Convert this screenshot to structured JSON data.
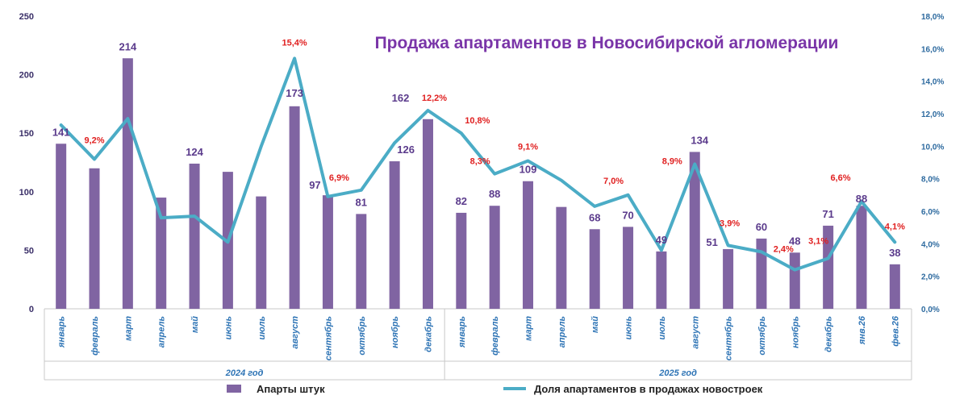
{
  "chart_data": {
    "type": "bar+line",
    "title": "Продажа апартаментов в Новосибирской агломерации",
    "categories": [
      "январь",
      "февраль",
      "март",
      "апрель",
      "май",
      "июнь",
      "июль",
      "август",
      "сентябрь",
      "октябрь",
      "ноябрь",
      "декабрь",
      "январь",
      "февраль",
      "март",
      "апрель",
      "май",
      "июнь",
      "июль",
      "август",
      "сентябрь",
      "октябрь",
      "ноябрь",
      "декабрь",
      "янв.26",
      "фев.26"
    ],
    "groups": [
      {
        "label": "2024 год",
        "from": 0,
        "to": 11
      },
      {
        "label": "2025 год",
        "from": 12,
        "to": 25
      }
    ],
    "series": [
      {
        "name": "Апарты штук",
        "type": "bar",
        "axis": "left",
        "color": "#8064a2",
        "values": [
          141,
          120,
          214,
          95,
          124,
          117,
          96,
          173,
          97,
          81,
          126,
          162,
          82,
          88,
          109,
          87,
          68,
          70,
          49,
          134,
          51,
          60,
          48,
          71,
          88,
          38
        ],
        "labels": [
          "141",
          "",
          "214",
          "",
          "124",
          "",
          "",
          "173",
          "97",
          "81",
          "126",
          "162",
          "82",
          "88",
          "109",
          "",
          "68",
          "70",
          "49",
          "134",
          "51",
          "60",
          "48",
          "71",
          "88",
          "38"
        ]
      },
      {
        "name": "Доля апартаментов в продажах новостроек",
        "type": "line",
        "axis": "right",
        "color": "#4bacc6",
        "values": [
          11.3,
          9.2,
          11.7,
          5.6,
          5.7,
          4.1,
          10.0,
          15.4,
          6.9,
          7.3,
          10.2,
          12.2,
          10.8,
          8.3,
          9.1,
          7.9,
          6.3,
          7.0,
          3.6,
          8.9,
          3.9,
          3.5,
          2.4,
          3.1,
          6.6,
          4.1
        ],
        "labels": [
          "",
          "9,2%",
          "",
          "",
          "",
          "",
          "",
          "15,4%",
          "6,9%",
          "",
          "",
          "12,2%",
          "10,8%",
          "8,3%",
          "9,1%",
          "",
          "",
          "7,0%",
          "",
          "8,9%",
          "3,9%",
          "",
          "2,4%",
          "3,1%",
          "6,6%",
          "4,1%"
        ]
      }
    ],
    "y_left": {
      "min": 0,
      "max": 250,
      "ticks": [
        "0",
        "50",
        "100",
        "150",
        "200",
        "250"
      ]
    },
    "y_right": {
      "min": 0,
      "max": 18,
      "ticks": [
        "0,0%",
        "2,0%",
        "4,0%",
        "6,0%",
        "8,0%",
        "10,0%",
        "12,0%",
        "14,0%",
        "16,0%",
        "18,0%"
      ]
    },
    "legend": [
      {
        "label": "Апарты штук",
        "kind": "bar",
        "color": "#8064a2"
      },
      {
        "label": "Доля апартаментов в продажах новостроек",
        "kind": "line",
        "color": "#4bacc6"
      }
    ],
    "legend_position": "bottom",
    "grid": false
  }
}
